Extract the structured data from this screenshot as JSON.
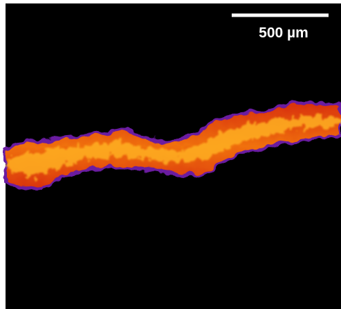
{
  "scale_bar": {
    "label": "500 µm"
  }
}
